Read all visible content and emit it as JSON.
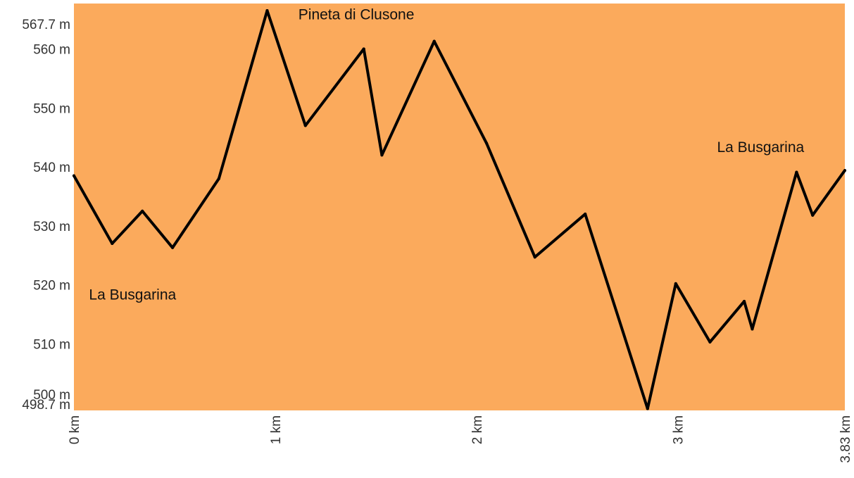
{
  "chart_data": {
    "type": "area",
    "x_unit": "km",
    "y_unit": "m",
    "xlim": [
      0,
      3.83
    ],
    "ylim": [
      498.7,
      567.7
    ],
    "grid": false,
    "legend": "none",
    "colors": {
      "area": "#fbaa5c",
      "line": "#000000"
    },
    "y_ticks": [
      {
        "value": 498.7,
        "label": "498.7 m"
      },
      {
        "value": 500,
        "label": "500 m"
      },
      {
        "value": 510,
        "label": "510 m"
      },
      {
        "value": 520,
        "label": "520 m"
      },
      {
        "value": 530,
        "label": "530 m"
      },
      {
        "value": 540,
        "label": "540 m"
      },
      {
        "value": 550,
        "label": "550 m"
      },
      {
        "value": 560,
        "label": "560 m"
      },
      {
        "value": 567.7,
        "label": "567.7 m"
      }
    ],
    "x_ticks": [
      {
        "value": 0,
        "label": "0 km"
      },
      {
        "value": 1,
        "label": "1 km"
      },
      {
        "value": 2,
        "label": "2 km"
      },
      {
        "value": 3,
        "label": "3 km"
      },
      {
        "value": 3.83,
        "label": "3.83 km"
      }
    ],
    "annotations": [
      {
        "text": "La Busgarina",
        "x": 0.04,
        "y": 520
      },
      {
        "text": "Pineta di Clusone",
        "x": 1.08,
        "y": 567.5
      },
      {
        "text": "La Busgarina",
        "x": 3.16,
        "y": 545
      }
    ],
    "series": [
      {
        "x": [
          0,
          0.19,
          0.34,
          0.49,
          0.72,
          0.96,
          1.15,
          1.44,
          1.53,
          1.79,
          2.05,
          2.29,
          2.54,
          2.85,
          2.99,
          3.16,
          3.33,
          3.37,
          3.59,
          3.67,
          3.83
        ],
        "y": [
          538.5,
          527,
          532.5,
          526.3,
          538,
          566.5,
          547,
          560,
          542,
          561.3,
          544,
          524.7,
          532,
          499,
          520.2,
          510.3,
          517.2,
          512.5,
          539.1,
          531.8,
          539.4
        ]
      }
    ]
  }
}
